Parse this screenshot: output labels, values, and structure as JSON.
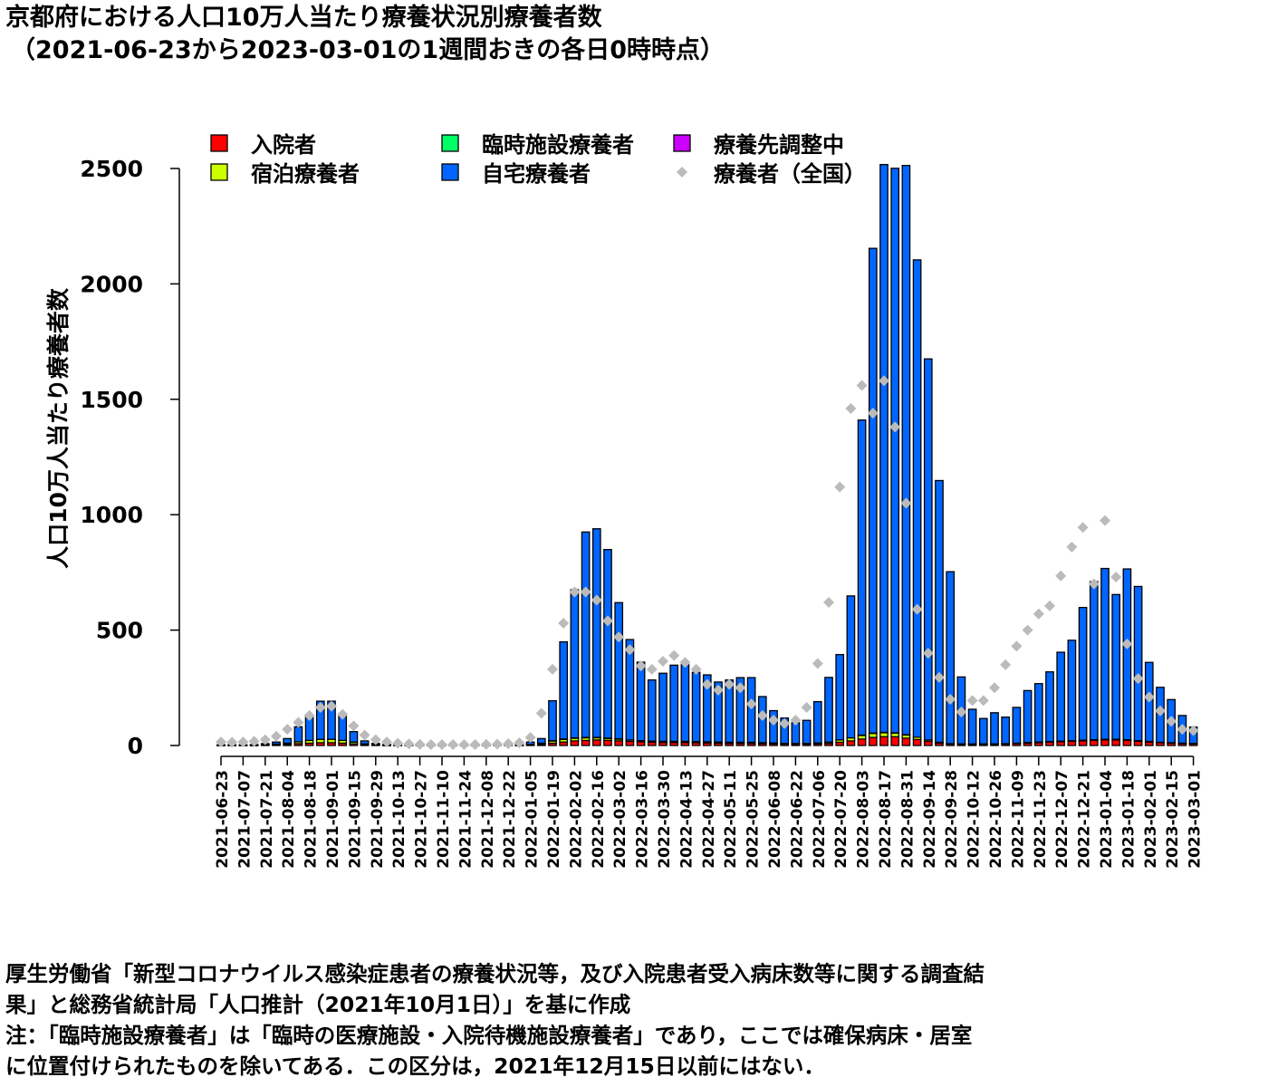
{
  "title": {
    "line1": "京都府における人口10万人当たり療養状況別療養者数",
    "line2": "（2021-06-23から2023-03-01の1週間おきの各日0時時点）"
  },
  "footer": {
    "line1": "厚生労働省「新型コロナウイルス感染症患者の療養状況等，及び入院患者受入病床数等に関する調査結",
    "line2": "果」と総務省統計局「人口推計（2021年10月1日）」を基に作成",
    "line3": "注：「臨時施設療養者」は「臨時の医療施設・入院待機施設療養者」であり，ここでは確保病床・居室",
    "line4": "に位置付けられたものを除いてある．この区分は，2021年12月15日以前にはない．"
  },
  "chart_data": {
    "type": "bar",
    "stacked": true,
    "ylabel": "人口10万人当たり療養者数",
    "ylim": [
      0,
      2500
    ],
    "yticks": [
      0,
      500,
      1000,
      1500,
      2000,
      2500
    ],
    "legend_placement": "top",
    "categories": [
      "2021-06-23",
      "2021-06-30",
      "2021-07-07",
      "2021-07-14",
      "2021-07-21",
      "2021-07-28",
      "2021-08-04",
      "2021-08-11",
      "2021-08-18",
      "2021-08-25",
      "2021-09-01",
      "2021-09-08",
      "2021-09-15",
      "2021-09-22",
      "2021-09-29",
      "2021-10-06",
      "2021-10-13",
      "2021-10-20",
      "2021-10-27",
      "2021-11-03",
      "2021-11-10",
      "2021-11-17",
      "2021-11-24",
      "2021-12-01",
      "2021-12-08",
      "2021-12-15",
      "2021-12-22",
      "2021-12-29",
      "2022-01-05",
      "2022-01-12",
      "2022-01-19",
      "2022-01-26",
      "2022-02-02",
      "2022-02-09",
      "2022-02-16",
      "2022-02-23",
      "2022-03-02",
      "2022-03-09",
      "2022-03-16",
      "2022-03-23",
      "2022-03-30",
      "2022-04-06",
      "2022-04-13",
      "2022-04-20",
      "2022-04-27",
      "2022-05-04",
      "2022-05-11",
      "2022-05-18",
      "2022-05-25",
      "2022-06-01",
      "2022-06-08",
      "2022-06-15",
      "2022-06-22",
      "2022-06-29",
      "2022-07-06",
      "2022-07-13",
      "2022-07-20",
      "2022-07-27",
      "2022-08-03",
      "2022-08-10",
      "2022-08-17",
      "2022-08-24",
      "2022-08-31",
      "2022-09-07",
      "2022-09-14",
      "2022-09-21",
      "2022-09-28",
      "2022-10-05",
      "2022-10-12",
      "2022-10-19",
      "2022-10-26",
      "2022-11-02",
      "2022-11-09",
      "2022-11-16",
      "2022-11-23",
      "2022-11-30",
      "2022-12-07",
      "2022-12-14",
      "2022-12-21",
      "2022-12-28",
      "2023-01-04",
      "2023-01-11",
      "2023-01-18",
      "2023-01-25",
      "2023-02-01",
      "2023-02-08",
      "2023-02-15",
      "2023-02-22",
      "2023-03-01"
    ],
    "tick_labels": [
      "2021-06-23",
      "2021-07-07",
      "2021-07-21",
      "2021-08-04",
      "2021-08-18",
      "2021-09-01",
      "2021-09-15",
      "2021-09-29",
      "2021-10-13",
      "2021-10-27",
      "2021-11-10",
      "2021-11-24",
      "2021-12-08",
      "2021-12-22",
      "2022-01-05",
      "2022-01-19",
      "2022-02-02",
      "2022-02-16",
      "2022-03-02",
      "2022-03-16",
      "2022-03-30",
      "2022-04-13",
      "2022-04-27",
      "2022-05-11",
      "2022-05-25",
      "2022-06-08",
      "2022-06-22",
      "2022-07-06",
      "2022-07-20",
      "2022-08-03",
      "2022-08-17",
      "2022-08-31",
      "2022-09-14",
      "2022-09-28",
      "2022-10-12",
      "2022-10-26",
      "2022-11-09",
      "2022-11-23",
      "2022-12-07",
      "2022-12-21",
      "2023-01-04",
      "2023-01-18",
      "2023-02-01",
      "2023-02-15",
      "2023-03-01"
    ],
    "series": [
      {
        "name": "入院者",
        "color": "#ff0000",
        "values": [
          1,
          1,
          1,
          1,
          2,
          3,
          5,
          8,
          10,
          12,
          12,
          10,
          7,
          3,
          2,
          1,
          1,
          1,
          0,
          0,
          0,
          0,
          0,
          0,
          0,
          0,
          0,
          1,
          2,
          5,
          10,
          15,
          20,
          22,
          24,
          22,
          20,
          18,
          16,
          14,
          13,
          13,
          13,
          12,
          11,
          10,
          9,
          9,
          9,
          8,
          7,
          6,
          6,
          6,
          7,
          9,
          14,
          20,
          28,
          35,
          38,
          38,
          32,
          26,
          18,
          10,
          6,
          5,
          5,
          5,
          5,
          6,
          8,
          10,
          12,
          14,
          16,
          18,
          20,
          22,
          24,
          24,
          22,
          18,
          15,
          12,
          10,
          8,
          7
        ]
      },
      {
        "name": "宿泊療養者",
        "color": "#ccff00",
        "values": [
          1,
          1,
          1,
          1,
          2,
          3,
          5,
          8,
          12,
          15,
          15,
          12,
          8,
          4,
          2,
          1,
          1,
          1,
          0,
          0,
          0,
          0,
          0,
          0,
          0,
          0,
          0,
          1,
          2,
          5,
          10,
          12,
          12,
          12,
          10,
          9,
          8,
          6,
          5,
          5,
          5,
          5,
          5,
          5,
          5,
          5,
          5,
          5,
          5,
          4,
          4,
          3,
          3,
          3,
          4,
          6,
          10,
          13,
          16,
          18,
          18,
          16,
          14,
          10,
          6,
          4,
          2,
          2,
          2,
          2,
          2,
          2,
          2,
          3,
          3,
          3,
          3,
          3,
          3,
          3,
          3,
          3,
          3,
          3,
          3,
          2,
          2,
          2,
          2
        ]
      },
      {
        "name": "臨時施設療養者",
        "color": "#00ff66",
        "values": [
          0,
          0,
          0,
          0,
          0,
          0,
          0,
          0,
          0,
          0,
          0,
          0,
          0,
          0,
          0,
          0,
          0,
          0,
          0,
          0,
          0,
          0,
          0,
          0,
          0,
          0,
          0,
          0,
          0,
          0,
          1,
          1,
          1,
          1,
          1,
          1,
          1,
          0,
          0,
          0,
          0,
          0,
          0,
          0,
          0,
          0,
          0,
          0,
          0,
          0,
          0,
          0,
          0,
          0,
          0,
          0,
          0,
          0,
          1,
          1,
          1,
          1,
          1,
          0,
          0,
          0,
          0,
          0,
          0,
          0,
          0,
          0,
          0,
          0,
          0,
          0,
          0,
          0,
          0,
          0,
          0,
          0,
          0,
          0,
          0,
          0,
          0,
          0,
          0
        ]
      },
      {
        "name": "自宅療養者",
        "color": "#0066ff",
        "values": [
          1,
          1,
          1,
          2,
          4,
          9,
          20,
          65,
          110,
          165,
          165,
          105,
          45,
          13,
          5,
          3,
          2,
          1,
          1,
          1,
          1,
          1,
          1,
          1,
          1,
          2,
          2,
          3,
          11,
          20,
          173,
          421,
          642,
          890,
          904,
          817,
          590,
          435,
          340,
          265,
          295,
          330,
          332,
          300,
          290,
          260,
          270,
          280,
          280,
          200,
          140,
          110,
          90,
          100,
          179,
          280,
          370,
          615,
          1365,
          2100,
          2460,
          2446,
          2466,
          2068,
          1651,
          1134,
          745,
          290,
          150,
          110,
          135,
          115,
          155,
          225,
          253,
          302,
          385,
          435,
          575,
          685,
          740,
          627,
          740,
          668,
          342,
          238,
          187,
          120,
          71
        ]
      },
      {
        "name": "療養先調整中",
        "color": "#cc00ff",
        "values": [
          0,
          0,
          0,
          0,
          0,
          0,
          0,
          0,
          0,
          0,
          0,
          0,
          0,
          0,
          0,
          0,
          0,
          0,
          0,
          0,
          0,
          0,
          0,
          0,
          0,
          0,
          0,
          0,
          0,
          0,
          0,
          0,
          0,
          0,
          0,
          0,
          0,
          0,
          0,
          0,
          0,
          0,
          0,
          0,
          0,
          0,
          0,
          0,
          0,
          0,
          0,
          0,
          0,
          0,
          0,
          0,
          0,
          0,
          0,
          0,
          0,
          0,
          0,
          0,
          0,
          0,
          0,
          0,
          0,
          0,
          0,
          0,
          0,
          0,
          0,
          0,
          0,
          0,
          0,
          0,
          0,
          0,
          0,
          0,
          0,
          0,
          0,
          0,
          0
        ]
      }
    ],
    "national": {
      "name": "療養者（全国）",
      "color": "#bbbbbb",
      "values": [
        15,
        14,
        15,
        18,
        25,
        40,
        70,
        100,
        130,
        165,
        170,
        135,
        85,
        45,
        25,
        15,
        10,
        7,
        5,
        4,
        4,
        4,
        4,
        4,
        5,
        6,
        8,
        12,
        35,
        140,
        330,
        530,
        665,
        665,
        630,
        540,
        470,
        415,
        345,
        330,
        365,
        390,
        360,
        330,
        265,
        240,
        265,
        250,
        180,
        130,
        110,
        95,
        110,
        165,
        355,
        620,
        1120,
        1460,
        1560,
        1440,
        1580,
        1380,
        1050,
        590,
        400,
        295,
        200,
        145,
        195,
        195,
        250,
        350,
        430,
        500,
        570,
        605,
        735,
        860,
        945,
        700,
        975,
        730,
        440,
        290,
        210,
        150,
        105,
        70,
        65
      ]
    }
  }
}
